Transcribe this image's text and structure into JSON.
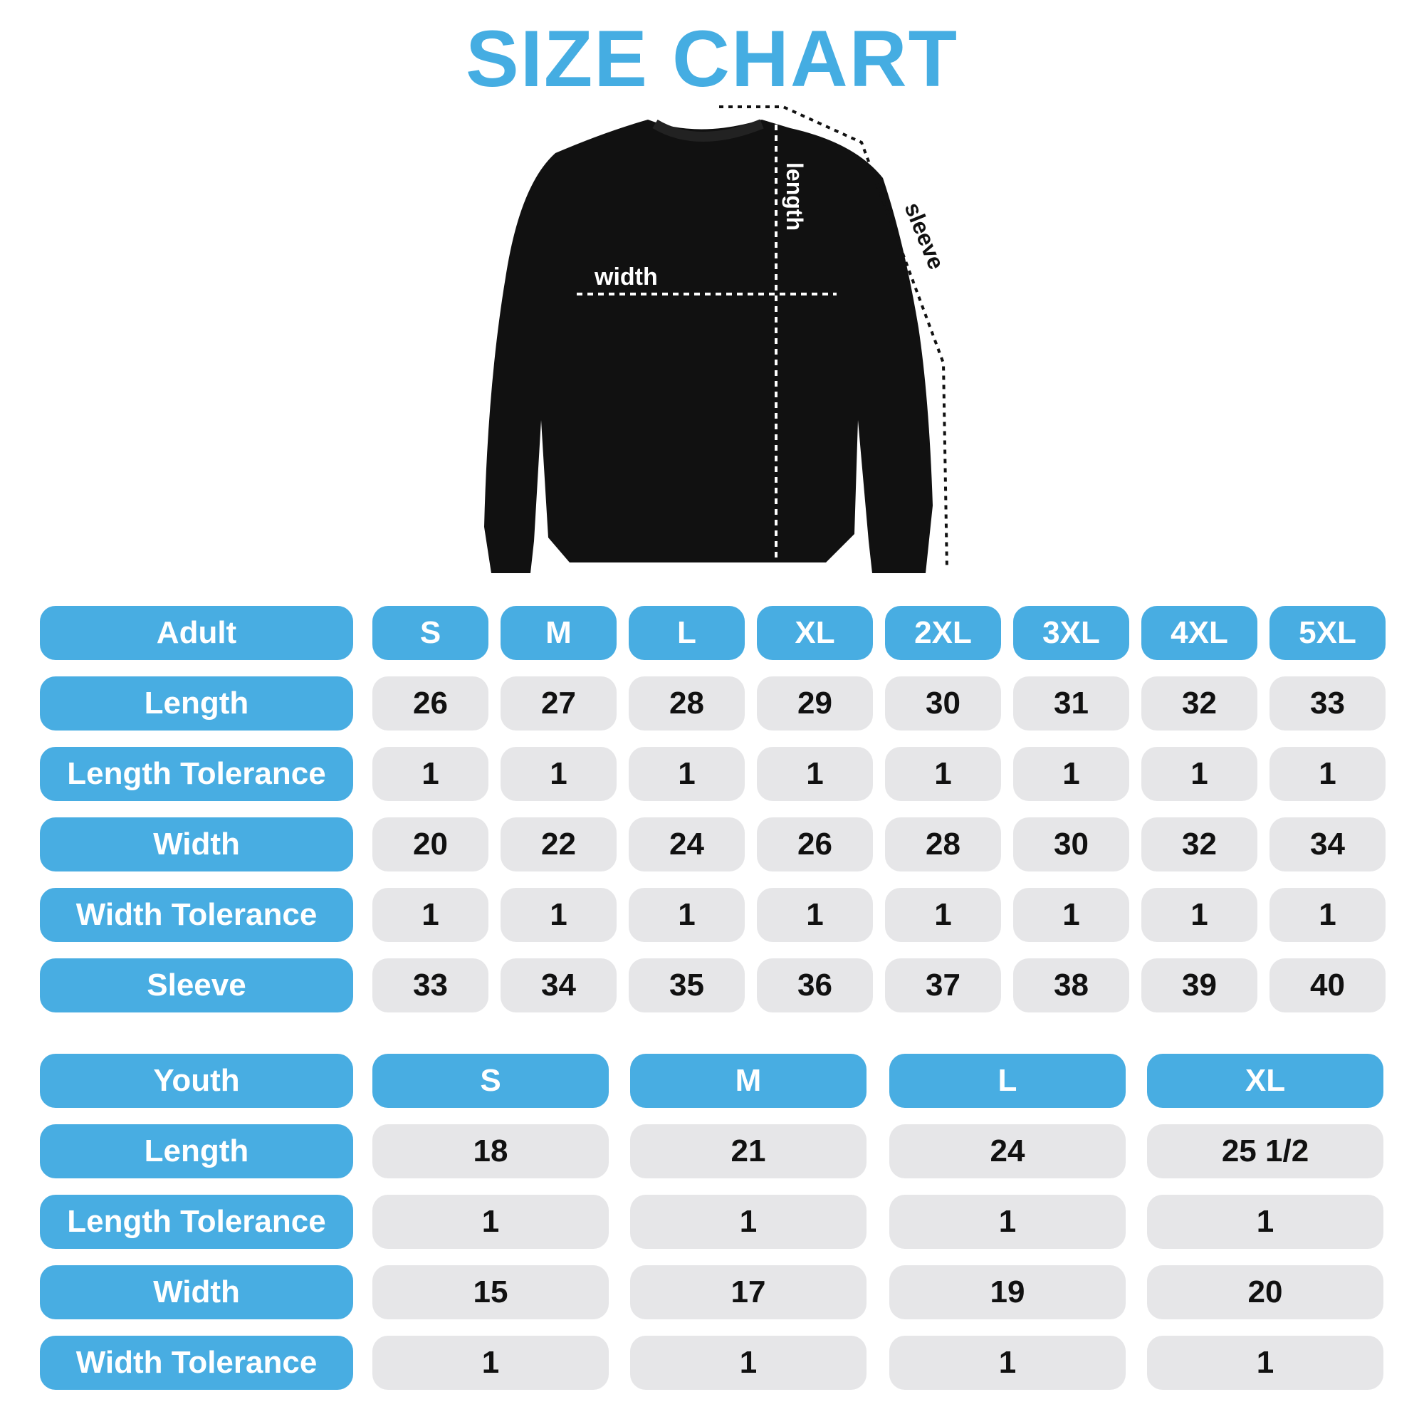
{
  "title": "SIZE CHART",
  "colors": {
    "accent": "#48ade2",
    "cell_bg": "#e6e6e8"
  },
  "diagram": {
    "width_label": "width",
    "length_label": "length",
    "sleeve_label": "sleeve"
  },
  "adult": {
    "header": "Adult",
    "sizes": [
      "S",
      "M",
      "L",
      "XL",
      "2XL",
      "3XL",
      "4XL",
      "5XL"
    ],
    "rows": [
      {
        "label": "Length",
        "values": [
          "26",
          "27",
          "28",
          "29",
          "30",
          "31",
          "32",
          "33"
        ]
      },
      {
        "label": "Length Tolerance",
        "values": [
          "1",
          "1",
          "1",
          "1",
          "1",
          "1",
          "1",
          "1"
        ]
      },
      {
        "label": "Width",
        "values": [
          "20",
          "22",
          "24",
          "26",
          "28",
          "30",
          "32",
          "34"
        ]
      },
      {
        "label": "Width Tolerance",
        "values": [
          "1",
          "1",
          "1",
          "1",
          "1",
          "1",
          "1",
          "1"
        ]
      },
      {
        "label": "Sleeve",
        "values": [
          "33",
          "34",
          "35",
          "36",
          "37",
          "38",
          "39",
          "40"
        ]
      }
    ]
  },
  "youth": {
    "header": "Youth",
    "sizes": [
      "S",
      "M",
      "L",
      "XL"
    ],
    "rows": [
      {
        "label": "Length",
        "values": [
          "18",
          "21",
          "24",
          "25 1/2"
        ]
      },
      {
        "label": "Length Tolerance",
        "values": [
          "1",
          "1",
          "1",
          "1"
        ]
      },
      {
        "label": "Width",
        "values": [
          "15",
          "17",
          "19",
          "20"
        ]
      },
      {
        "label": "Width Tolerance",
        "values": [
          "1",
          "1",
          "1",
          "1"
        ]
      }
    ]
  }
}
